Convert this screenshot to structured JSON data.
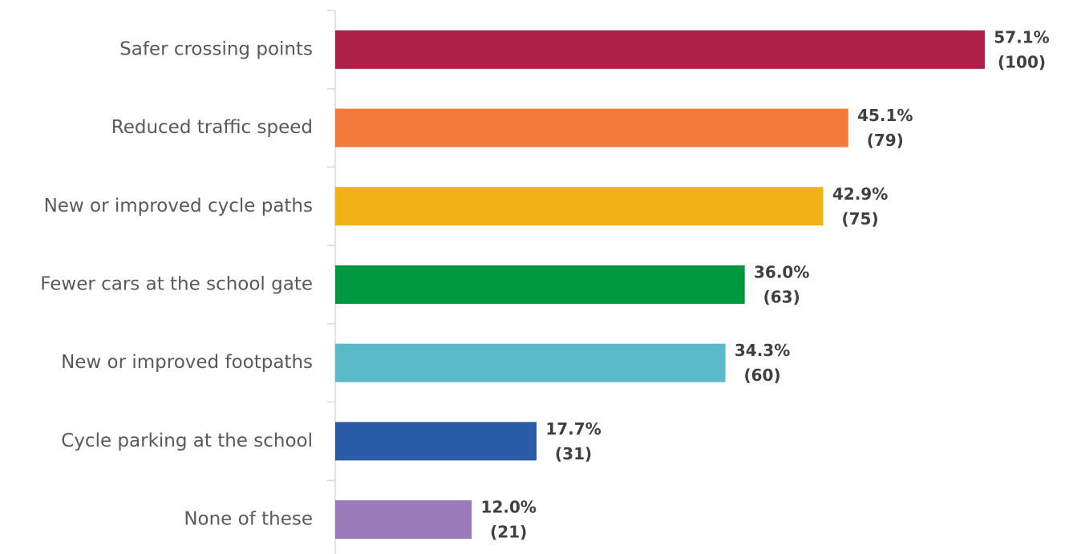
{
  "chart_data": {
    "type": "barh",
    "categories": [
      "Safer crossing points",
      "Reduced traffic speed",
      "New or improved cycle paths",
      "Fewer cars at the school gate",
      "New or improved footpaths",
      "Cycle parking at the school",
      "None of these"
    ],
    "values": [
      57.1,
      45.1,
      42.9,
      36.0,
      34.3,
      17.7,
      12.0
    ],
    "value_labels": [
      "57.1%",
      "45.1%",
      "42.9%",
      "36.0%",
      "34.3%",
      "17.7%",
      "12.0%"
    ],
    "counts": [
      100,
      79,
      75,
      63,
      60,
      31,
      21
    ],
    "count_labels": [
      "(100)",
      "(79)",
      "(75)",
      "(63)",
      "(60)",
      "(31)",
      "(21)"
    ],
    "colors": [
      "#ad2149",
      "#f47a3c",
      "#f2b217",
      "#00983f",
      "#5bbac9",
      "#2a5ca8",
      "#9a7bba"
    ]
  }
}
